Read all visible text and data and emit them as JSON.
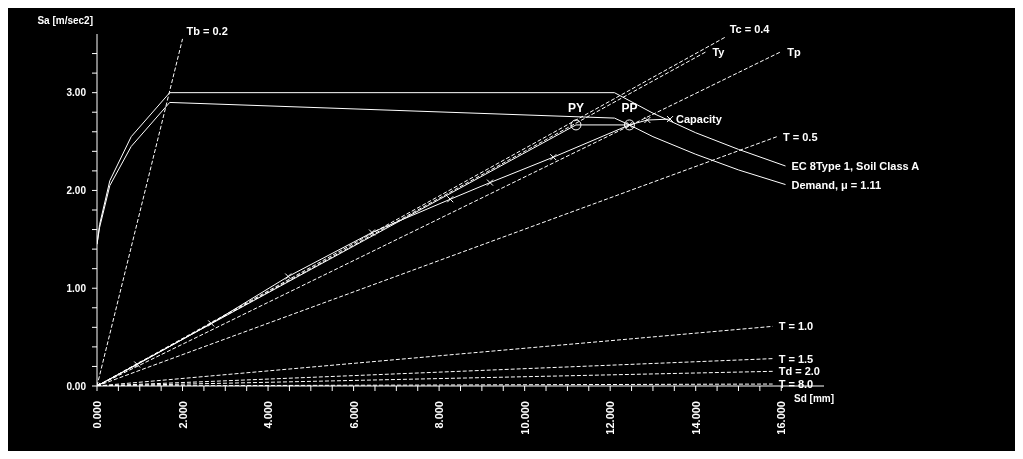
{
  "chart_data": {
    "type": "line",
    "xlabel": "Sd [mm]",
    "ylabel": "Sa [m/sec2]",
    "xlim": [
      0,
      17
    ],
    "ylim": [
      0,
      3.6
    ],
    "xticks": [
      {
        "value": 0,
        "label": "0.000"
      },
      {
        "value": 0.5,
        "label": null
      },
      {
        "value": 1,
        "label": null
      },
      {
        "value": 1.5,
        "label": null
      },
      {
        "value": 2,
        "label": "2.000"
      },
      {
        "value": 2.5,
        "label": null
      },
      {
        "value": 3,
        "label": null
      },
      {
        "value": 3.5,
        "label": null
      },
      {
        "value": 4,
        "label": "4.000"
      },
      {
        "value": 4.5,
        "label": null
      },
      {
        "value": 5,
        "label": null
      },
      {
        "value": 5.5,
        "label": null
      },
      {
        "value": 6,
        "label": "6.000"
      },
      {
        "value": 6.5,
        "label": null
      },
      {
        "value": 7,
        "label": null
      },
      {
        "value": 7.5,
        "label": null
      },
      {
        "value": 8,
        "label": "8.000"
      },
      {
        "value": 8.5,
        "label": null
      },
      {
        "value": 9,
        "label": null
      },
      {
        "value": 9.5,
        "label": null
      },
      {
        "value": 10,
        "label": "10.000"
      },
      {
        "value": 10.5,
        "label": null
      },
      {
        "value": 11,
        "label": null
      },
      {
        "value": 11.5,
        "label": null
      },
      {
        "value": 12,
        "label": "12.000"
      },
      {
        "value": 12.5,
        "label": null
      },
      {
        "value": 13,
        "label": null
      },
      {
        "value": 13.5,
        "label": null
      },
      {
        "value": 14,
        "label": "14.000"
      },
      {
        "value": 14.5,
        "label": null
      },
      {
        "value": 15,
        "label": null
      },
      {
        "value": 15.5,
        "label": null
      },
      {
        "value": 16,
        "label": "16.000"
      }
    ],
    "yticks": [
      {
        "value": 0,
        "label": "0.00"
      },
      {
        "value": 0.2,
        "label": null
      },
      {
        "value": 0.4,
        "label": null
      },
      {
        "value": 0.6,
        "label": null
      },
      {
        "value": 0.8,
        "label": null
      },
      {
        "value": 1,
        "label": "1.00"
      },
      {
        "value": 1.2,
        "label": null
      },
      {
        "value": 1.4,
        "label": null
      },
      {
        "value": 1.6,
        "label": null
      },
      {
        "value": 1.8,
        "label": null
      },
      {
        "value": 2,
        "label": "2.00"
      },
      {
        "value": 2.2,
        "label": null
      },
      {
        "value": 2.4,
        "label": null
      },
      {
        "value": 2.6,
        "label": null
      },
      {
        "value": 2.8,
        "label": null
      },
      {
        "value": 3,
        "label": "3.00"
      },
      {
        "value": 3.2,
        "label": null
      },
      {
        "value": 3.4,
        "label": null
      }
    ],
    "series": [
      {
        "name": "EC 8Type 1, Soil Class A",
        "color": "#ffffff",
        "line_style": "solid",
        "marker": "none",
        "x": [
          0,
          0.06,
          0.3,
          0.8,
          1.7,
          12.1,
          13,
          14,
          15,
          16.1
        ],
        "values": [
          1.45,
          1.65,
          2.1,
          2.55,
          3.0,
          3.0,
          2.79,
          2.59,
          2.42,
          2.25
        ]
      },
      {
        "name": "Demand,   μ =  1.11",
        "color": "#ffffff",
        "line_style": "solid",
        "marker": "none",
        "x": [
          0,
          0.06,
          0.3,
          0.8,
          1.7,
          12.1,
          12.45,
          13,
          14,
          15,
          16.1
        ],
        "values": [
          1.45,
          1.62,
          2.05,
          2.45,
          2.9,
          2.74,
          2.67,
          2.55,
          2.37,
          2.21,
          2.06
        ]
      },
      {
        "name": "Capacity",
        "color": "#ffffff",
        "line_style": "solid",
        "marker": "cross",
        "x": [
          0,
          0.94,
          2.67,
          4.47,
          6.43,
          8.26,
          9.19,
          10.67,
          12.45,
          12.87,
          13.4
        ],
        "values": [
          0,
          0.22,
          0.64,
          1.12,
          1.57,
          1.91,
          2.08,
          2.34,
          2.67,
          2.72,
          2.73
        ]
      },
      {
        "color": "#ffffff",
        "line_style": "solid",
        "marker": "none",
        "x": [
          0,
          11.2,
          12.45
        ],
        "values": [
          0,
          2.67,
          2.67
        ]
      },
      {
        "name": "Tb = 0.2",
        "color": "#ffffff",
        "line_style": "dashed",
        "marker": "none",
        "x": [
          0,
          2.0
        ],
        "values": [
          0,
          3.55
        ]
      },
      {
        "name": "Tc = 0.4",
        "color": "#ffffff",
        "line_style": "dashed",
        "marker": "none",
        "x": [
          0,
          14.7
        ],
        "values": [
          0,
          3.57
        ]
      },
      {
        "name": "Ty",
        "color": "#ffffff",
        "line_style": "dashed",
        "marker": "none",
        "x": [
          0,
          14.25
        ],
        "values": [
          0,
          3.42
        ]
      },
      {
        "name": "Tp",
        "color": "#ffffff",
        "line_style": "dashed",
        "marker": "none",
        "x": [
          0,
          16.0
        ],
        "values": [
          0,
          3.42
        ]
      },
      {
        "name": "T = 0.5",
        "color": "#ffffff",
        "line_style": "dashed",
        "marker": "none",
        "x": [
          0,
          15.9
        ],
        "values": [
          0,
          2.55
        ]
      },
      {
        "name": "T = 1.0",
        "color": "#ffffff",
        "line_style": "dashed",
        "marker": "none",
        "x": [
          0,
          15.8
        ],
        "values": [
          0,
          0.61
        ]
      },
      {
        "name": "T = 1.5",
        "color": "#ffffff",
        "line_style": "dashed",
        "marker": "none",
        "x": [
          0,
          15.8
        ],
        "values": [
          0,
          0.28
        ]
      },
      {
        "name": "Td = 2.0",
        "color": "#ffffff",
        "line_style": "dashed",
        "marker": "none",
        "x": [
          0,
          15.8
        ],
        "values": [
          0,
          0.15
        ]
      },
      {
        "name": "T = 8.0",
        "color": "#ffffff",
        "line_style": "dashed",
        "marker": "none",
        "x": [
          0,
          15.8
        ],
        "values": [
          0,
          0.02
        ]
      }
    ],
    "annotations": [
      {
        "text": "PY",
        "x": 11.2,
        "y": 2.67
      },
      {
        "text": "PP",
        "x": 12.45,
        "y": 2.67
      }
    ]
  }
}
